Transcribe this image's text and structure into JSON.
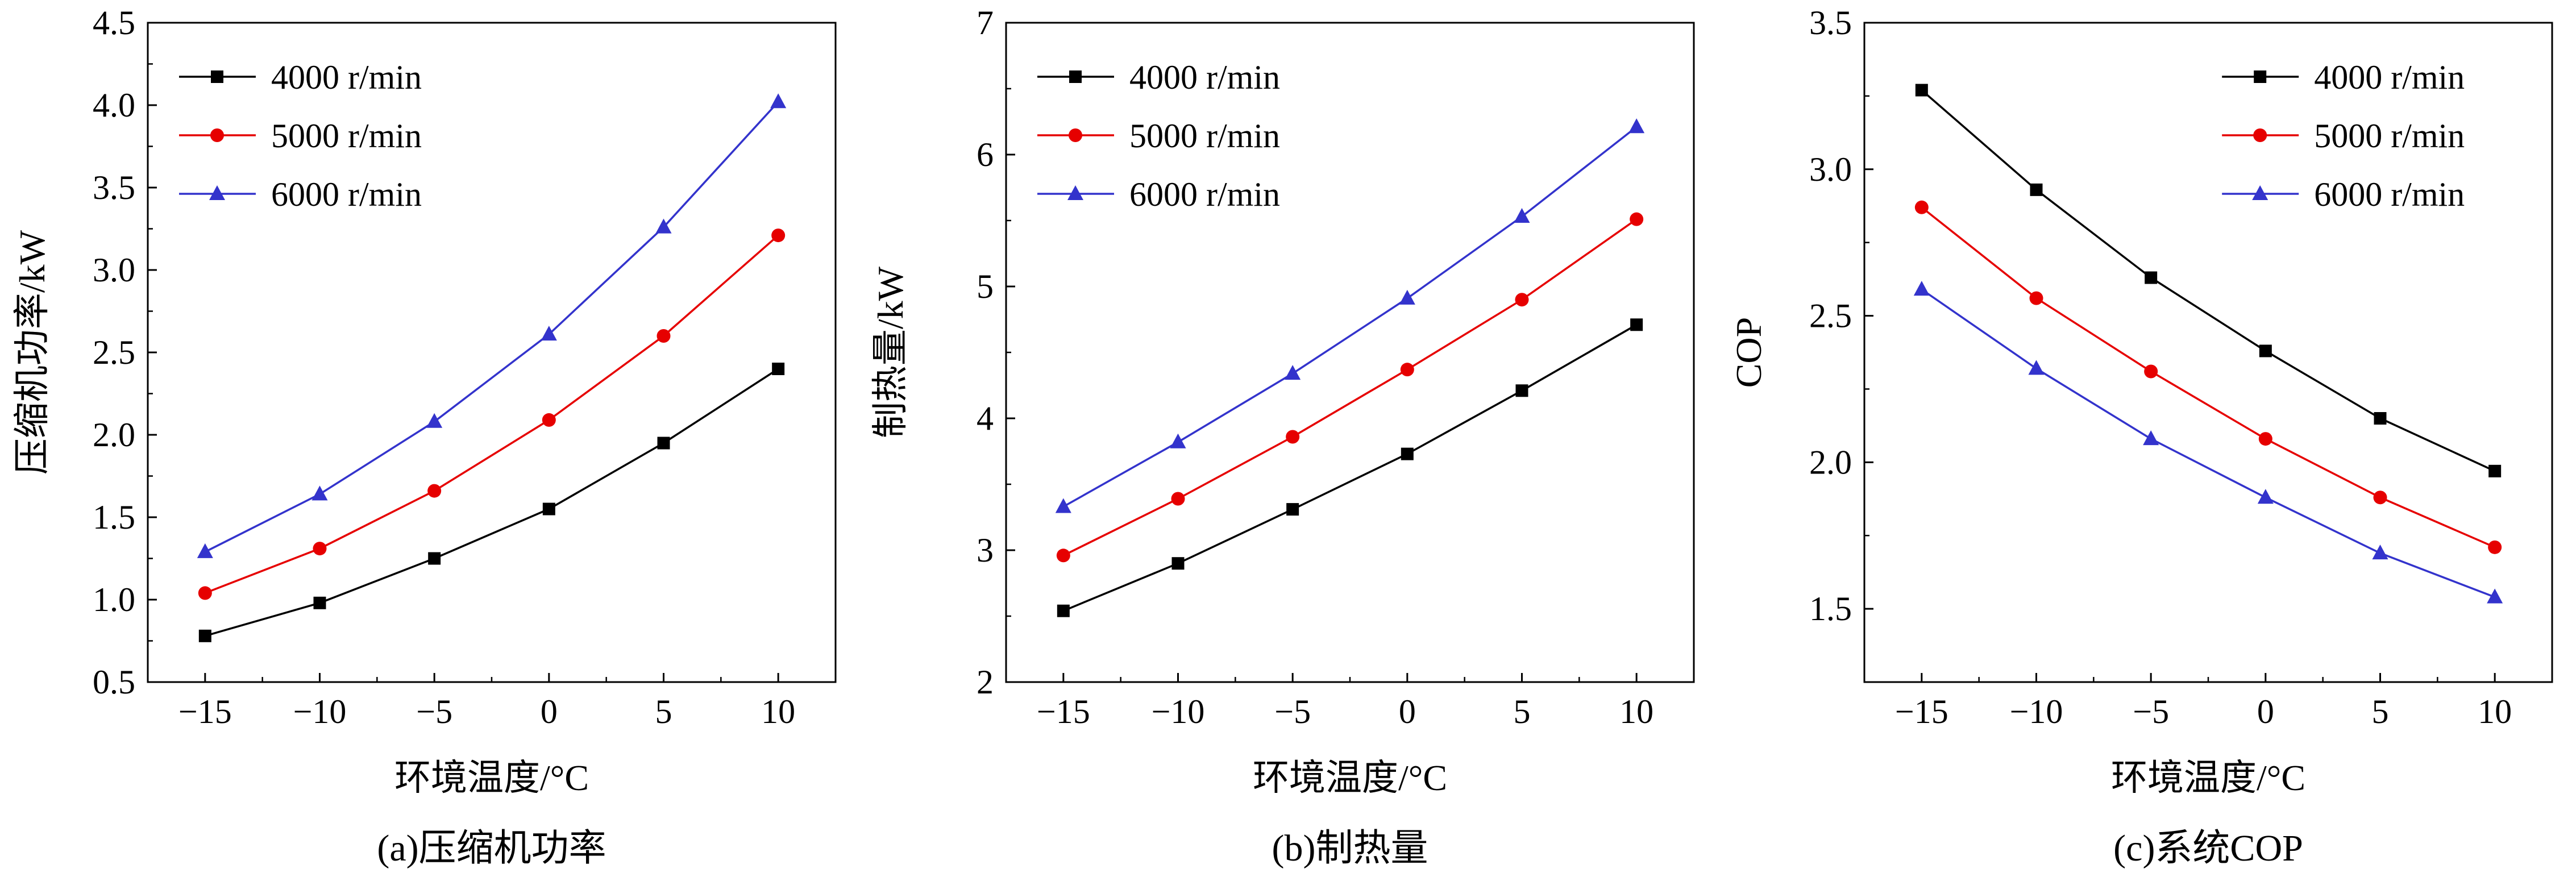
{
  "figure": {
    "background": "#ffffff",
    "axis_color": "#000000"
  },
  "chart_data": [
    {
      "type": "line",
      "title": "",
      "caption": "(a)压缩机功率",
      "xlabel": "环境温度/°C",
      "ylabel": "压缩机功率/kW",
      "xlim": [
        -17.5,
        12.5
      ],
      "ylim": [
        0.5,
        4.5
      ],
      "x": [
        -15,
        -10,
        -5,
        0,
        5,
        10
      ],
      "xtick_values": [
        -15,
        -10,
        -5,
        0,
        5,
        10
      ],
      "xtick_labels": [
        "−15",
        "−10",
        "−5",
        "0",
        "5",
        "10"
      ],
      "xtick_minor": [
        -12.5,
        -7.5,
        -2.5,
        2.5,
        7.5
      ],
      "ytick_values": [
        0.5,
        1.0,
        1.5,
        2.0,
        2.5,
        3.0,
        3.5,
        4.0,
        4.5
      ],
      "ytick_labels": [
        "0.5",
        "1.0",
        "1.5",
        "2.0",
        "2.5",
        "3.0",
        "3.5",
        "4.0",
        "4.5"
      ],
      "ytick_minor": [
        0.75,
        1.25,
        1.75,
        2.25,
        2.75,
        3.25,
        3.75,
        4.25
      ],
      "grid": false,
      "legend_pos": "top-left",
      "series": [
        {
          "name": "4000 r/min",
          "color": "#000000",
          "marker": "square",
          "values": [
            0.78,
            0.98,
            1.25,
            1.55,
            1.95,
            2.4
          ]
        },
        {
          "name": "5000 r/min",
          "color": "#e60000",
          "marker": "circle",
          "values": [
            1.04,
            1.31,
            1.66,
            2.09,
            2.6,
            3.21
          ]
        },
        {
          "name": "6000 r/min",
          "color": "#3333cc",
          "marker": "triangle",
          "values": [
            1.29,
            1.64,
            2.08,
            2.61,
            3.26,
            4.02
          ]
        }
      ]
    },
    {
      "type": "line",
      "title": "",
      "caption": "(b)制热量",
      "xlabel": "环境温度/°C",
      "ylabel": "制热量/kW",
      "xlim": [
        -17.5,
        12.5
      ],
      "ylim": [
        2,
        7
      ],
      "x": [
        -15,
        -10,
        -5,
        0,
        5,
        10
      ],
      "xtick_values": [
        -15,
        -10,
        -5,
        0,
        5,
        10
      ],
      "xtick_labels": [
        "−15",
        "−10",
        "−5",
        "0",
        "5",
        "10"
      ],
      "xtick_minor": [
        -12.5,
        -7.5,
        -2.5,
        2.5,
        7.5
      ],
      "ytick_values": [
        2,
        3,
        4,
        5,
        6,
        7
      ],
      "ytick_labels": [
        "2",
        "3",
        "4",
        "5",
        "6",
        "7"
      ],
      "ytick_minor": [
        2.5,
        3.5,
        4.5,
        5.5,
        6.5
      ],
      "grid": false,
      "legend_pos": "top-left",
      "series": [
        {
          "name": "4000 r/min",
          "color": "#000000",
          "marker": "square",
          "values": [
            2.54,
            2.9,
            3.31,
            3.73,
            4.21,
            4.71
          ]
        },
        {
          "name": "5000 r/min",
          "color": "#e60000",
          "marker": "circle",
          "values": [
            2.96,
            3.39,
            3.86,
            4.37,
            4.9,
            5.51
          ]
        },
        {
          "name": "6000 r/min",
          "color": "#3333cc",
          "marker": "triangle",
          "values": [
            3.33,
            3.82,
            4.34,
            4.91,
            5.53,
            6.21
          ]
        }
      ]
    },
    {
      "type": "line",
      "title": "",
      "caption": "(c)系统COP",
      "xlabel": "环境温度/°C",
      "ylabel": "COP",
      "xlim": [
        -17.5,
        12.5
      ],
      "ylim": [
        1.25,
        3.5
      ],
      "x": [
        -15,
        -10,
        -5,
        0,
        5,
        10
      ],
      "xtick_values": [
        -15,
        -10,
        -5,
        0,
        5,
        10
      ],
      "xtick_labels": [
        "−15",
        "−10",
        "−5",
        "0",
        "5",
        "10"
      ],
      "xtick_minor": [
        -12.5,
        -7.5,
        -2.5,
        2.5,
        7.5
      ],
      "ytick_values": [
        1.5,
        2.0,
        2.5,
        3.0,
        3.5
      ],
      "ytick_labels": [
        "1.5",
        "2.0",
        "2.5",
        "3.0",
        "3.5"
      ],
      "ytick_minor": [
        1.75,
        2.25,
        2.75,
        3.25
      ],
      "grid": false,
      "legend_pos": "top-right",
      "series": [
        {
          "name": "4000 r/min",
          "color": "#000000",
          "marker": "square",
          "values": [
            3.27,
            2.93,
            2.63,
            2.38,
            2.15,
            1.97
          ]
        },
        {
          "name": "5000 r/min",
          "color": "#e60000",
          "marker": "circle",
          "values": [
            2.87,
            2.56,
            2.31,
            2.08,
            1.88,
            1.71
          ]
        },
        {
          "name": "6000 r/min",
          "color": "#3333cc",
          "marker": "triangle",
          "values": [
            2.59,
            2.32,
            2.08,
            1.88,
            1.69,
            1.54
          ]
        }
      ]
    }
  ]
}
